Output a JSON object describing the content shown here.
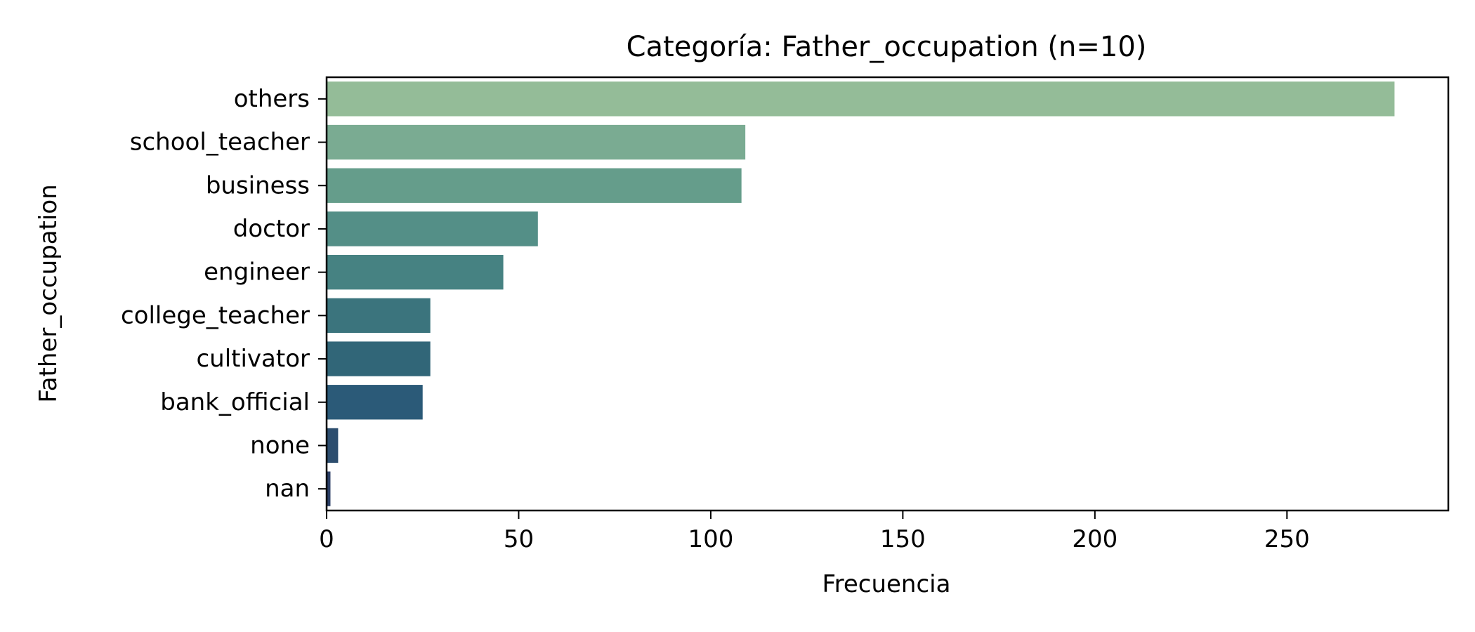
{
  "chart_data": {
    "type": "bar",
    "orientation": "horizontal",
    "title": "Categoría: Father_occupation (n=10)",
    "xlabel": "Frecuencia",
    "ylabel": "Father_occupation",
    "categories": [
      "others",
      "school_teacher",
      "business",
      "doctor",
      "engineer",
      "college_teacher",
      "cultivator",
      "bank_official",
      "none",
      "nan"
    ],
    "values": [
      278,
      109,
      108,
      55,
      46,
      27,
      27,
      25,
      3,
      1
    ],
    "colors": [
      "#94bc98",
      "#7aab92",
      "#659d8b",
      "#548f87",
      "#468282",
      "#3b747d",
      "#316678",
      "#2b5a78",
      "#2c4d6e",
      "#2b3f66"
    ],
    "xticks": [
      0,
      50,
      100,
      150,
      200,
      250
    ],
    "xlim": [
      0,
      292
    ],
    "grid": false,
    "legend": "none"
  }
}
